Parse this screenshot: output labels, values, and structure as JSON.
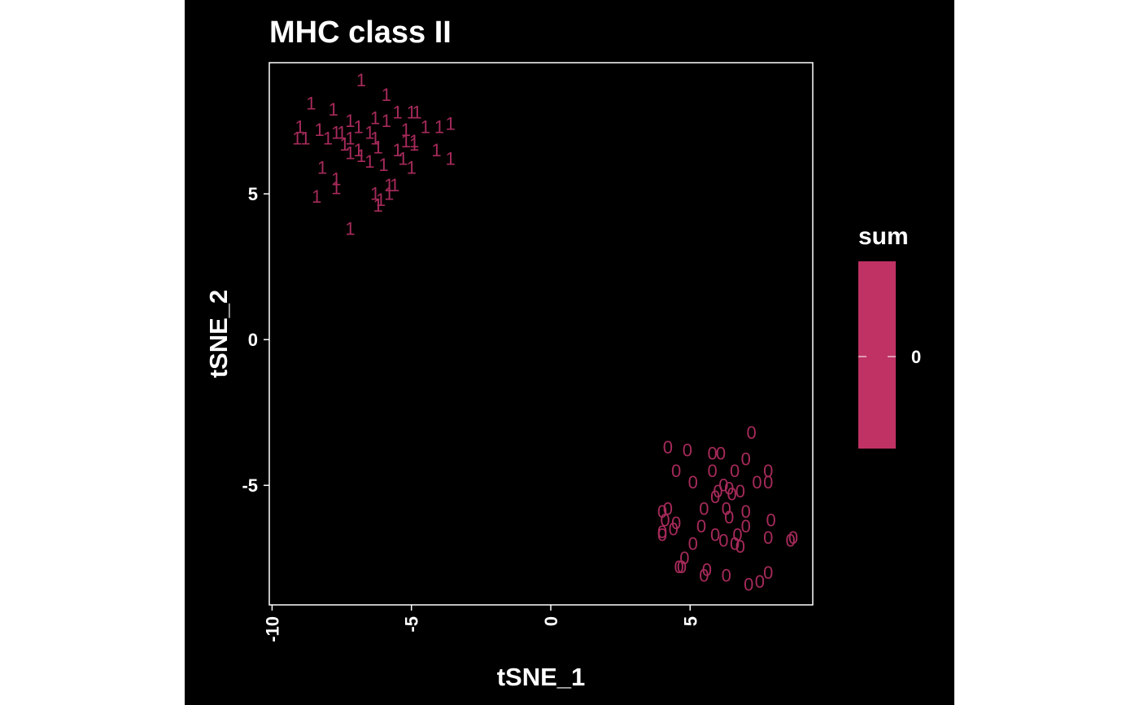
{
  "chart_data": {
    "type": "scatter",
    "title": "MHC class II",
    "xlabel": "tSNE_1",
    "ylabel": "tSNE_2",
    "xlim": [
      -10.1,
      9.4
    ],
    "ylim": [
      -9.1,
      9.5
    ],
    "x_ticks": [
      -10,
      -5,
      0,
      5
    ],
    "x_tick_labels": [
      "-10",
      "-5",
      "0",
      "5"
    ],
    "y_ticks": [
      -5,
      0,
      5
    ],
    "y_tick_labels": [
      "-5",
      "0",
      "5"
    ],
    "grid": false,
    "background": "#000000",
    "axis_color": "#ffffff",
    "legend": {
      "title": "sum",
      "placement": "right",
      "color": "#c03264",
      "tick_labels": [
        "0"
      ]
    },
    "series": [
      {
        "label": "1",
        "color": "#a62a5a",
        "points": [
          {
            "x": -6.8,
            "y": 8.9
          },
          {
            "x": -8.6,
            "y": 8.1
          },
          {
            "x": -7.8,
            "y": 7.9
          },
          {
            "x": -5.9,
            "y": 8.4
          },
          {
            "x": -5.0,
            "y": 7.8
          },
          {
            "x": -5.5,
            "y": 7.8
          },
          {
            "x": -4.8,
            "y": 7.8
          },
          {
            "x": -6.3,
            "y": 7.6
          },
          {
            "x": -7.2,
            "y": 7.5
          },
          {
            "x": -5.9,
            "y": 7.5
          },
          {
            "x": -9.0,
            "y": 7.3
          },
          {
            "x": -8.3,
            "y": 7.2
          },
          {
            "x": -7.5,
            "y": 7.1
          },
          {
            "x": -6.9,
            "y": 7.3
          },
          {
            "x": -5.2,
            "y": 7.2
          },
          {
            "x": -4.5,
            "y": 7.3
          },
          {
            "x": -4.0,
            "y": 7.3
          },
          {
            "x": -3.6,
            "y": 7.4
          },
          {
            "x": -7.7,
            "y": 7.1
          },
          {
            "x": -6.5,
            "y": 7.1
          },
          {
            "x": -9.1,
            "y": 6.9
          },
          {
            "x": -8.8,
            "y": 6.9
          },
          {
            "x": -8.0,
            "y": 6.9
          },
          {
            "x": -7.2,
            "y": 6.9
          },
          {
            "x": -6.3,
            "y": 6.9
          },
          {
            "x": -7.4,
            "y": 6.7
          },
          {
            "x": -6.9,
            "y": 6.5
          },
          {
            "x": -6.2,
            "y": 6.6
          },
          {
            "x": -5.2,
            "y": 6.8
          },
          {
            "x": -4.9,
            "y": 6.8
          },
          {
            "x": -5.5,
            "y": 6.5
          },
          {
            "x": -4.9,
            "y": 6.7
          },
          {
            "x": -4.1,
            "y": 6.5
          },
          {
            "x": -7.2,
            "y": 6.4
          },
          {
            "x": -6.8,
            "y": 6.3
          },
          {
            "x": -6.5,
            "y": 6.1
          },
          {
            "x": -6.0,
            "y": 6.0
          },
          {
            "x": -5.3,
            "y": 6.2
          },
          {
            "x": -3.6,
            "y": 6.2
          },
          {
            "x": -8.2,
            "y": 5.9
          },
          {
            "x": -7.7,
            "y": 5.5
          },
          {
            "x": -5.0,
            "y": 5.9
          },
          {
            "x": -5.6,
            "y": 5.3
          },
          {
            "x": -5.8,
            "y": 5.3
          },
          {
            "x": -7.7,
            "y": 5.2
          },
          {
            "x": -8.4,
            "y": 4.9
          },
          {
            "x": -6.3,
            "y": 5.0
          },
          {
            "x": -5.8,
            "y": 5.0
          },
          {
            "x": -6.1,
            "y": 4.8
          },
          {
            "x": -6.2,
            "y": 4.6
          },
          {
            "x": -7.2,
            "y": 3.8
          }
        ]
      },
      {
        "label": "0",
        "color": "#a62a5a",
        "points": [
          {
            "x": 7.2,
            "y": -3.2
          },
          {
            "x": 4.2,
            "y": -3.7
          },
          {
            "x": 4.9,
            "y": -3.8
          },
          {
            "x": 5.8,
            "y": -3.9
          },
          {
            "x": 6.1,
            "y": -3.9
          },
          {
            "x": 7.0,
            "y": -4.1
          },
          {
            "x": 4.5,
            "y": -4.5
          },
          {
            "x": 5.8,
            "y": -4.5
          },
          {
            "x": 6.6,
            "y": -4.5
          },
          {
            "x": 7.8,
            "y": -4.5
          },
          {
            "x": 7.4,
            "y": -4.9
          },
          {
            "x": 7.8,
            "y": -4.9
          },
          {
            "x": 5.1,
            "y": -4.9
          },
          {
            "x": 6.2,
            "y": -5.0
          },
          {
            "x": 6.4,
            "y": -5.1
          },
          {
            "x": 6.0,
            "y": -5.2
          },
          {
            "x": 6.8,
            "y": -5.2
          },
          {
            "x": 6.5,
            "y": -5.3
          },
          {
            "x": 5.9,
            "y": -5.4
          },
          {
            "x": 5.5,
            "y": -5.8
          },
          {
            "x": 6.3,
            "y": -5.8
          },
          {
            "x": 4.0,
            "y": -5.9
          },
          {
            "x": 4.2,
            "y": -5.8
          },
          {
            "x": 7.0,
            "y": -5.9
          },
          {
            "x": 6.4,
            "y": -6.1
          },
          {
            "x": 4.1,
            "y": -6.2
          },
          {
            "x": 7.9,
            "y": -6.2
          },
          {
            "x": 4.5,
            "y": -6.3
          },
          {
            "x": 5.4,
            "y": -6.4
          },
          {
            "x": 4.4,
            "y": -6.5
          },
          {
            "x": 7.0,
            "y": -6.4
          },
          {
            "x": 4.0,
            "y": -6.7
          },
          {
            "x": 4.0,
            "y": -6.6
          },
          {
            "x": 5.9,
            "y": -6.7
          },
          {
            "x": 6.7,
            "y": -6.7
          },
          {
            "x": 7.8,
            "y": -6.8
          },
          {
            "x": 8.7,
            "y": -6.8
          },
          {
            "x": 8.6,
            "y": -6.9
          },
          {
            "x": 6.2,
            "y": -6.9
          },
          {
            "x": 6.6,
            "y": -7.0
          },
          {
            "x": 5.1,
            "y": -7.0
          },
          {
            "x": 6.8,
            "y": -7.1
          },
          {
            "x": 4.8,
            "y": -7.5
          },
          {
            "x": 4.6,
            "y": -7.8
          },
          {
            "x": 4.7,
            "y": -7.8
          },
          {
            "x": 5.6,
            "y": -7.9
          },
          {
            "x": 5.5,
            "y": -8.1
          },
          {
            "x": 6.3,
            "y": -8.1
          },
          {
            "x": 7.8,
            "y": -8.0
          },
          {
            "x": 7.5,
            "y": -8.3
          },
          {
            "x": 7.1,
            "y": -8.4
          }
        ]
      }
    ]
  }
}
